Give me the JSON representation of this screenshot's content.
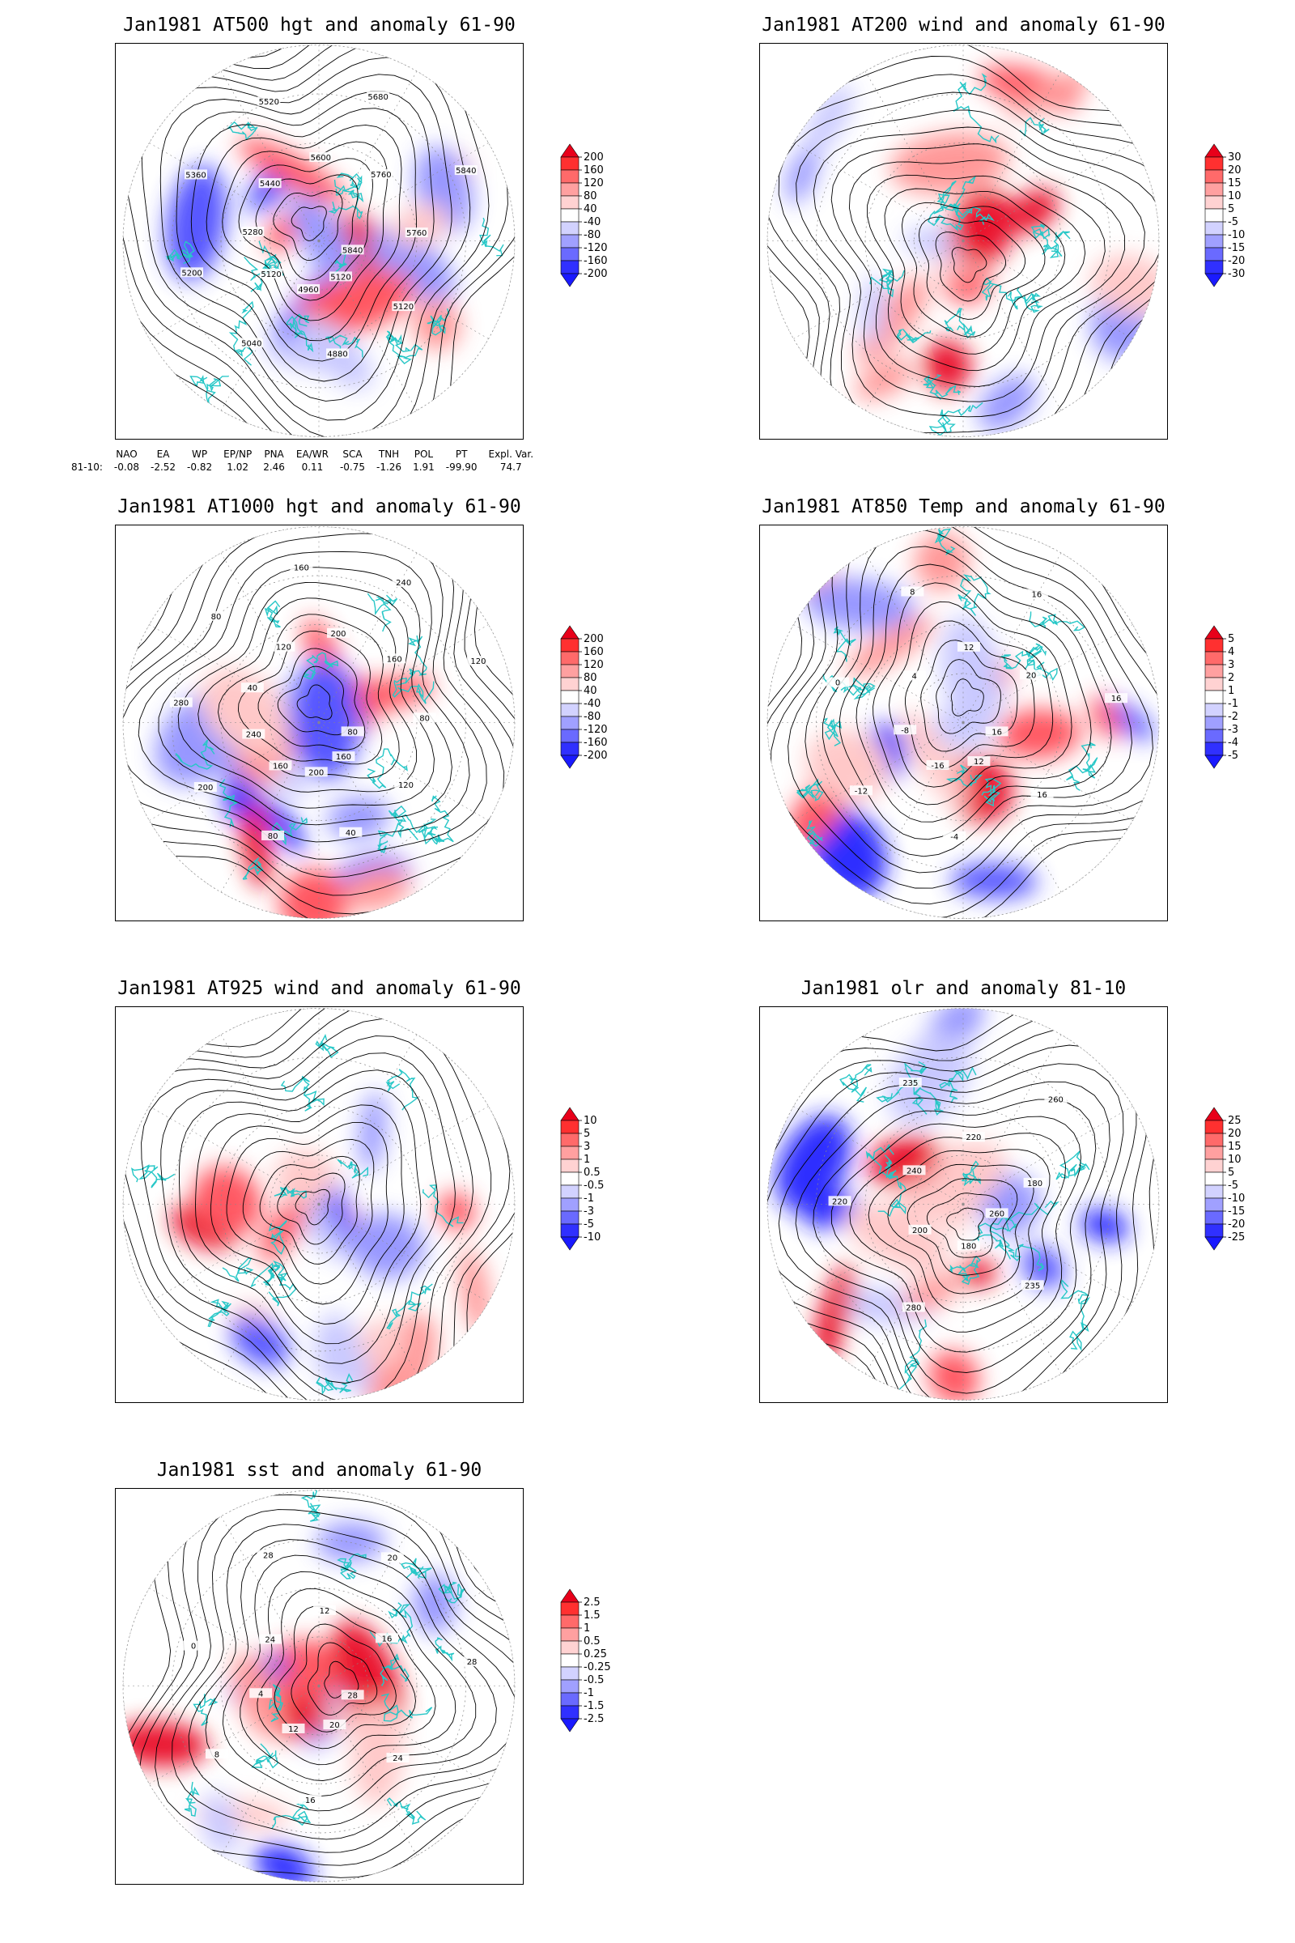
{
  "panels": [
    {
      "id": "p1",
      "title": "Jan1981 AT500 hgt and anomaly 61-90",
      "contour_labels": [
        "5840",
        "5120",
        "5120",
        "4880",
        "4960",
        "5040",
        "5120",
        "5200",
        "5280",
        "5360",
        "5440",
        "5520",
        "5600",
        "5680",
        "5760",
        "5840",
        "5760"
      ],
      "colorbar": [
        "200",
        "160",
        "120",
        "80",
        "40",
        "-40",
        "-80",
        "-120",
        "-160",
        "-200"
      ]
    },
    {
      "id": "p2",
      "title": "Jan1981 AT200 wind and anomaly 61-90",
      "contour_labels": [],
      "colorbar": [
        "30",
        "20",
        "15",
        "10",
        "5",
        "-5",
        "-10",
        "-15",
        "-20",
        "-30"
      ]
    },
    {
      "id": "p3",
      "title": "Jan1981 AT1000 hgt and anomaly 61-90",
      "contour_labels": [
        "80",
        "120",
        "160",
        "40",
        "200",
        "80",
        "160",
        "200",
        "240",
        "280",
        "40",
        "80",
        "120",
        "160",
        "200",
        "240",
        "160",
        "120",
        "80"
      ],
      "colorbar": [
        "200",
        "160",
        "120",
        "80",
        "40",
        "-40",
        "-80",
        "-120",
        "-160",
        "-200"
      ]
    },
    {
      "id": "p4",
      "title": "Jan1981 AT850 Temp and anomaly 61-90",
      "contour_labels": [
        "16",
        "16",
        "12",
        "-4",
        "-16",
        "-12",
        "-8",
        "0",
        "4",
        "8",
        "12",
        "16",
        "20",
        "16"
      ],
      "colorbar": [
        "5",
        "4",
        "3",
        "2",
        "1",
        "-1",
        "-2",
        "-3",
        "-4",
        "-5"
      ]
    },
    {
      "id": "p5",
      "title": "Jan1981 AT925 wind and anomaly 61-90",
      "contour_labels": [],
      "colorbar": [
        "10",
        "5",
        "3",
        "1",
        "0.5",
        "-0.5",
        "-1",
        "-3",
        "-5",
        "-10"
      ]
    },
    {
      "id": "p6",
      "title": "Jan1981 olr and anomaly 81-10",
      "contour_labels": [
        "260",
        "235",
        "180",
        "280",
        "200",
        "220",
        "240",
        "235",
        "220",
        "260",
        "180"
      ],
      "colorbar": [
        "25",
        "20",
        "15",
        "10",
        "5",
        "-5",
        "-10",
        "-15",
        "-20",
        "-25"
      ]
    },
    {
      "id": "p7",
      "title": "Jan1981 sst and anomaly 61-90",
      "contour_labels": [
        "28",
        "24",
        "20",
        "16",
        "12",
        "8",
        "4",
        "0",
        "24",
        "28",
        "12",
        "20",
        "16",
        "28"
      ],
      "colorbar": [
        "2.5",
        "1.5",
        "1",
        "0.5",
        "0.25",
        "-0.25",
        "-0.5",
        "-1",
        "-1.5",
        "-2.5"
      ]
    }
  ],
  "indices": {
    "headers": [
      "",
      "NAO",
      "EA",
      "WP",
      "EP/NP",
      "PNA",
      "EA/WR",
      "SCA",
      "TNH",
      "POL",
      "PT",
      "Expl. Var."
    ],
    "row_label": "81-10:",
    "values": [
      "-0.08",
      "-2.52",
      "-0.82",
      "1.02",
      "2.46",
      "0.11",
      "-0.75",
      "-1.26",
      "1.91",
      "-99.90",
      "74.7"
    ]
  },
  "colors": {
    "positive": "#e8001a",
    "negative": "#1a1aff",
    "coast": "#27c7c7",
    "contour": "#000000"
  }
}
